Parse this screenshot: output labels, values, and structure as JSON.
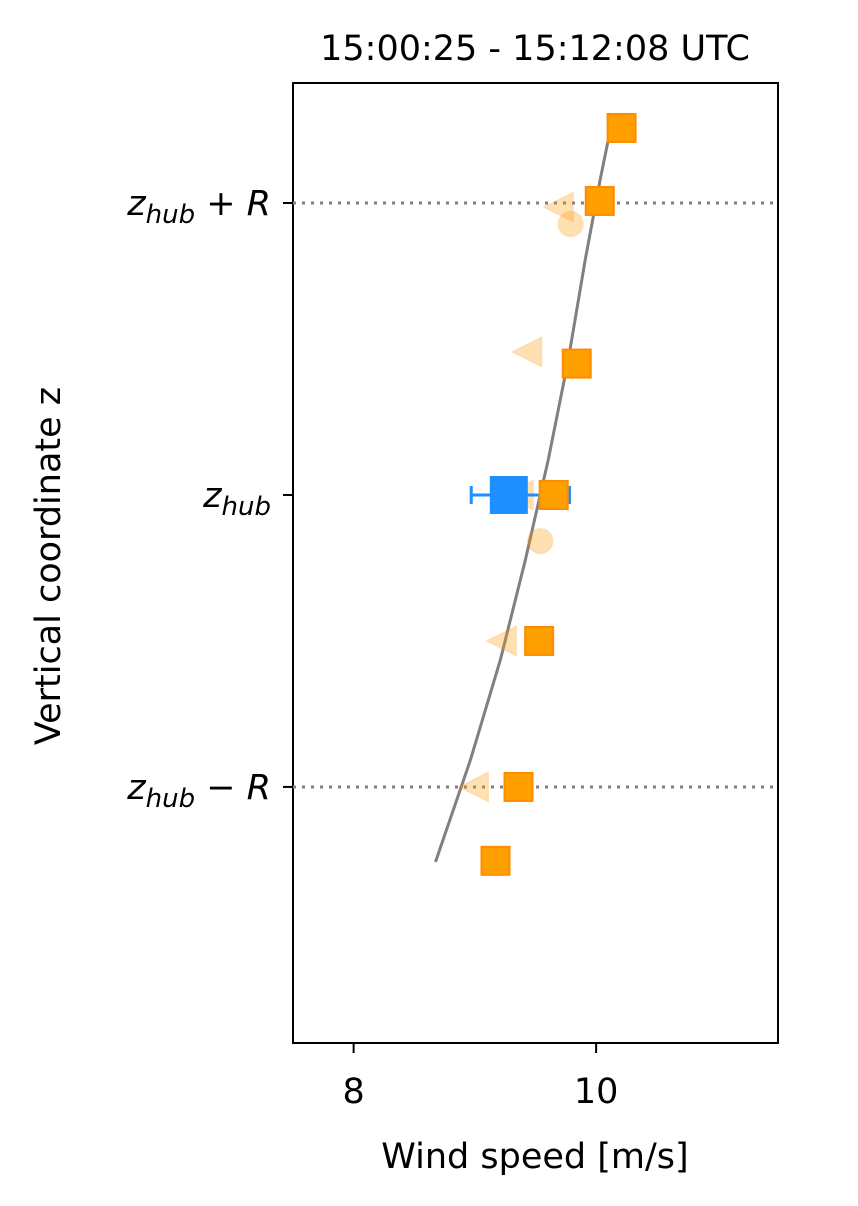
{
  "chart_data": {
    "type": "scatter",
    "title": "15:00:25 - 15:12:08 UTC",
    "x_label": "Wind speed [m/s]",
    "y_label": "Vertical coordinate z",
    "xlim": [
      7.5,
      11.5
    ],
    "xticks": [
      8,
      10
    ],
    "ylim": [
      -1.877,
      1.411
    ],
    "yticks": [
      {
        "value": -1,
        "label": [
          "z",
          "hub",
          " − R"
        ]
      },
      {
        "value": 0,
        "label": [
          "z",
          "hub",
          ""
        ]
      },
      {
        "value": 1,
        "label": [
          "z",
          "hub",
          " + R"
        ]
      }
    ],
    "hlines": [
      -1,
      1
    ],
    "hline_color": "#808080",
    "series": [
      {
        "kind": "line",
        "color": "#808080",
        "alpha": 1,
        "x": [
          8.675,
          8.963,
          9.21,
          9.416,
          9.605,
          9.77,
          9.91,
          10.033,
          10.1
        ],
        "y": [
          -1.257,
          -0.908,
          -0.565,
          -0.223,
          0.12,
          0.462,
          0.805,
          1.079,
          1.216
        ]
      },
      {
        "kind": "triangle",
        "color": "#ff9f00",
        "alpha": 0.3,
        "x": [
          9.7,
          9.44,
          9.37,
          9.23,
          9.0
        ],
        "y": [
          0.986,
          0.49,
          0,
          -0.5,
          -1.0
        ]
      },
      {
        "kind": "circle",
        "color": "#ff9f00",
        "alpha": 0.3,
        "x": [
          9.79,
          9.54
        ],
        "y": [
          0.928,
          -0.158
        ]
      },
      {
        "kind": "errsquare",
        "color": "#1e8fff",
        "alpha": 1,
        "x": [
          9.28
        ],
        "y": [
          0
        ],
        "xerr_minus": [
          0.31
        ],
        "xerr_plus": [
          0.5
        ]
      },
      {
        "kind": "square",
        "color": "#ff9f00",
        "alpha": 1,
        "x": [
          10.21,
          10.03,
          9.84,
          9.65,
          9.53,
          9.36,
          9.17
        ],
        "y": [
          1.257,
          1.007,
          0.45,
          0,
          -0.5,
          -1.0,
          -1.253
        ]
      }
    ]
  }
}
